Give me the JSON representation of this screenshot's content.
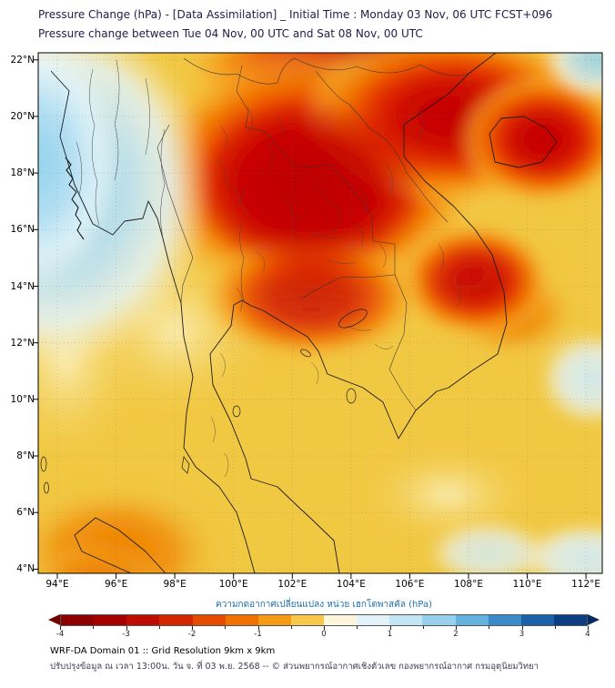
{
  "header": {
    "title_line1": "Pressure Change (hPa) - [Data Assimilation] _ Initial Time : Monday 03 Nov, 06 UTC FCST+096",
    "title_line2": "Pressure change between Tue 04 Nov, 00 UTC and Sat 08 Nov, 00 UTC"
  },
  "map": {
    "lat_tick_labels": [
      "22°N",
      "20°N",
      "18°N",
      "16°N",
      "14°N",
      "12°N",
      "10°N",
      "8°N",
      "6°N",
      "4°N"
    ],
    "lon_tick_labels": [
      "94°E",
      "96°E",
      "98°E",
      "100°E",
      "102°E",
      "104°E",
      "106°E",
      "108°E",
      "110°E",
      "112°E"
    ]
  },
  "colorbar": {
    "label": "ความกดอากาศเปลี่ยนแปลง หน่วย เฮกโตพาสคัล (hPa)",
    "tick_labels": [
      "-4",
      "-3",
      "-2",
      "-1",
      "0",
      "1",
      "2",
      "3",
      "4"
    ],
    "segment_colors": [
      "#8c0000",
      "#a50000",
      "#bd0d00",
      "#d22700",
      "#e44a00",
      "#ef7100",
      "#f59b16",
      "#f7c84c",
      "#fdf6dc",
      "#e4f3fa",
      "#c3e6f5",
      "#96d0ec",
      "#62b1de",
      "#3a8bc8",
      "#1c62ab",
      "#0b3d82"
    ],
    "left_arrow_color": "#6e0000",
    "right_arrow_color": "#082a5e"
  },
  "footer": {
    "line1": "WRF-DA Domain 01 :: Grid Resolution 9km x 9km",
    "line2": "ปรับปรุงข้อมูล ณ เวลา 13:00น. วัน จ. ที่ 03 พ.ย. 2568 -- © ส่วนพยากรณ์อากาศเชิงตัวเลข กองพยากรณ์อากาศ กรมอุตุนิยมวิทยา"
  },
  "chart_data": {
    "type": "heatmap",
    "title": "Pressure change (hPa) between Tue 04 Nov 00 UTC and Sat 08 Nov 00 UTC (WRF-DA, FCST+096)",
    "x_axis": {
      "label": "longitude",
      "ticks": [
        "94°E",
        "96°E",
        "98°E",
        "100°E",
        "102°E",
        "104°E",
        "106°E",
        "108°E",
        "110°E",
        "112°E"
      ]
    },
    "y_axis": {
      "label": "latitude",
      "ticks": [
        "22°N",
        "20°N",
        "18°N",
        "16°N",
        "14°N",
        "12°N",
        "10°N",
        "8°N",
        "6°N",
        "4°N"
      ]
    },
    "colorbar": {
      "unit": "hPa",
      "min": -4,
      "max": 4,
      "tick_step": 1,
      "negative_side": "red (pressure fall)",
      "positive_side": "blue (pressure rise)"
    },
    "field_summary": [
      {
        "region": "Northern Thailand / Laos / Northern Vietnam (16-22N, 97-109E)",
        "value_hPa": "-3 to -4 (deep red maximum pressure fall)"
      },
      {
        "region": "Top-left corner, Bay of Bengal side (16-22N, 93-97E)",
        "value_hPa": "+0.5 to +1.5 (light blue pressure rise)"
      },
      {
        "region": "Central Thailand / Cambodia (12-16N)",
        "value_hPa": "-1.5 to -2.5 (orange-red)"
      },
      {
        "region": "Red tongue extending southeast toward 14-16N, 106-109E",
        "value_hPa": "-2 to -3"
      },
      {
        "region": "Southern peninsula (4-12N)",
        "value_hPa": "-0.5 to -1.5 (yellow-gold)"
      },
      {
        "region": "Bottom-left corner (4-6N, 94-98E)",
        "value_hPa": "-1.5 to -2 (orange)"
      },
      {
        "region": "Pockets near right/bottom-right edges (108-112E)",
        "value_hPa": "0 to +0.5 (pale blue / white)"
      }
    ]
  }
}
